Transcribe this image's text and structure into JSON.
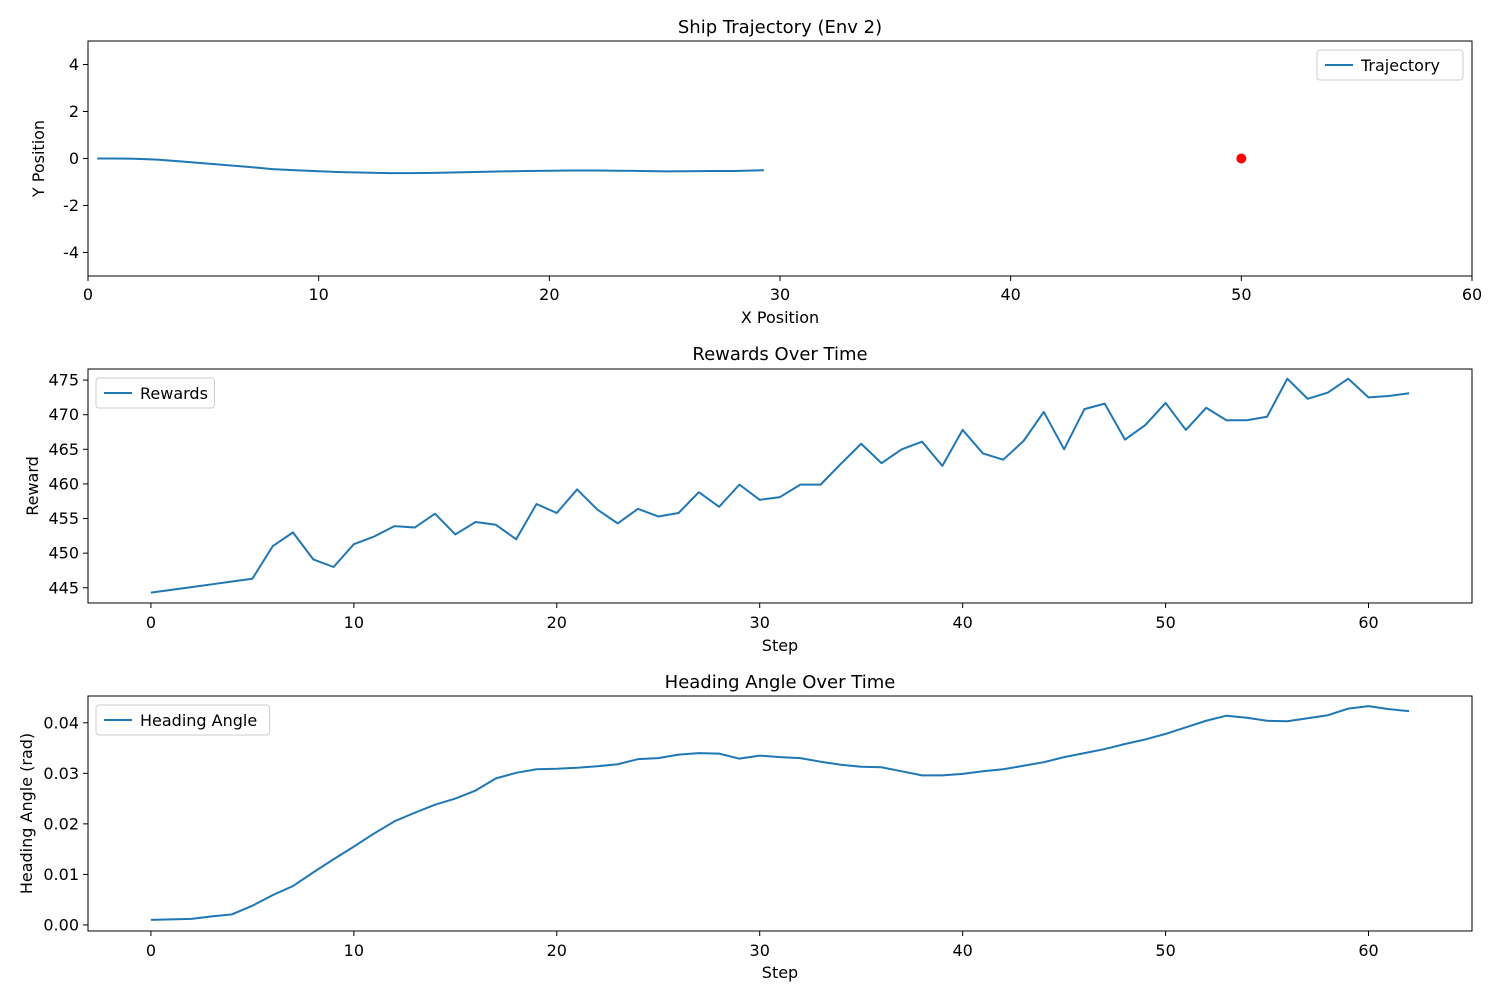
{
  "chart_data": [
    {
      "type": "line",
      "title": "Ship Trajectory (Env 2)",
      "xlabel": "X Position",
      "ylabel": "Y Position",
      "xlim": [
        0,
        60
      ],
      "ylim": [
        -5,
        5
      ],
      "xticks": [
        0,
        10,
        20,
        30,
        40,
        50,
        60
      ],
      "yticks": [
        -4,
        -2,
        0,
        2,
        4
      ],
      "legend_position": "upper-right",
      "grid": false,
      "series": [
        {
          "name": "Trajectory",
          "color": "#1f77b4",
          "x": [
            0.4,
            1,
            2,
            3,
            4,
            5,
            6,
            7,
            8,
            9,
            10,
            11,
            12,
            13,
            14,
            15,
            16,
            17,
            18,
            19,
            20,
            21,
            22,
            23,
            24,
            25,
            26,
            27,
            28,
            29.3
          ],
          "y": [
            0.0,
            0.0,
            -0.01,
            -0.05,
            -0.12,
            -0.2,
            -0.28,
            -0.36,
            -0.45,
            -0.5,
            -0.54,
            -0.58,
            -0.6,
            -0.62,
            -0.62,
            -0.61,
            -0.59,
            -0.57,
            -0.55,
            -0.53,
            -0.52,
            -0.51,
            -0.51,
            -0.52,
            -0.53,
            -0.55,
            -0.54,
            -0.53,
            -0.53,
            -0.5
          ]
        }
      ],
      "markers": [
        {
          "x": 50,
          "y": 0,
          "color": "#ff0000"
        }
      ]
    },
    {
      "type": "line",
      "title": "Rewards Over Time",
      "xlabel": "Step",
      "ylabel": "Reward",
      "xlim": [
        -3.1,
        65.1
      ],
      "ylim": [
        442.8,
        476.6
      ],
      "xticks": [
        0,
        10,
        20,
        30,
        40,
        50,
        60
      ],
      "yticks": [
        445,
        450,
        455,
        460,
        465,
        470,
        475
      ],
      "legend_position": "upper-left",
      "grid": false,
      "series": [
        {
          "name": "Rewards",
          "color": "#1f77b4",
          "x": [
            0,
            1,
            2,
            3,
            4,
            5,
            6,
            7,
            8,
            9,
            10,
            11,
            12,
            13,
            14,
            15,
            16,
            17,
            18,
            19,
            20,
            21,
            22,
            23,
            24,
            25,
            26,
            27,
            28,
            29,
            30,
            31,
            32,
            33,
            34,
            35,
            36,
            37,
            38,
            39,
            40,
            41,
            42,
            43,
            44,
            45,
            46,
            47,
            48,
            49,
            50,
            51,
            52,
            53,
            54,
            55,
            56,
            57,
            58,
            59,
            60,
            61,
            62
          ],
          "y": [
            444.3,
            444.7,
            445.1,
            445.5,
            445.9,
            446.3,
            451.0,
            453.0,
            449.1,
            448.0,
            451.3,
            452.4,
            453.9,
            453.7,
            455.7,
            452.7,
            454.5,
            454.1,
            452.0,
            457.1,
            455.8,
            459.2,
            456.3,
            454.3,
            456.4,
            455.3,
            455.8,
            458.8,
            456.7,
            459.9,
            457.7,
            458.1,
            459.9,
            459.9,
            462.9,
            465.8,
            463.0,
            465.0,
            466.1,
            462.6,
            467.8,
            464.4,
            463.5,
            466.2,
            470.4,
            465.0,
            470.8,
            471.6,
            466.4,
            468.5,
            471.7,
            467.8,
            471.0,
            469.2,
            469.2,
            469.7,
            475.2,
            472.3,
            473.2,
            475.2,
            472.5,
            472.7,
            473.1
          ]
        }
      ]
    },
    {
      "type": "line",
      "title": "Heading Angle Over Time",
      "xlabel": "Step",
      "ylabel": "Heading Angle (rad)",
      "xlim": [
        -3.1,
        65.1
      ],
      "ylim": [
        -0.0012,
        0.0453
      ],
      "xticks": [
        0,
        10,
        20,
        30,
        40,
        50,
        60
      ],
      "yticks": [
        0.0,
        0.01,
        0.02,
        0.03,
        0.04
      ],
      "ytick_labels": [
        "0.00",
        "0.01",
        "0.02",
        "0.03",
        "0.04"
      ],
      "legend_position": "upper-left",
      "grid": false,
      "series": [
        {
          "name": "Heading Angle",
          "color": "#1f77b4",
          "x": [
            0,
            1,
            2,
            3,
            4,
            5,
            6,
            7,
            8,
            9,
            10,
            11,
            12,
            13,
            14,
            15,
            16,
            17,
            18,
            19,
            20,
            21,
            22,
            23,
            24,
            25,
            26,
            27,
            28,
            29,
            30,
            31,
            32,
            33,
            34,
            35,
            36,
            37,
            38,
            39,
            40,
            41,
            42,
            43,
            44,
            45,
            46,
            47,
            48,
            49,
            50,
            51,
            52,
            53,
            54,
            55,
            56,
            57,
            58,
            59,
            60,
            61,
            62
          ],
          "y": [
            0.001,
            0.0011,
            0.0012,
            0.0017,
            0.0021,
            0.0038,
            0.0059,
            0.0077,
            0.0104,
            0.013,
            0.0155,
            0.0181,
            0.0205,
            0.0222,
            0.0238,
            0.025,
            0.0266,
            0.029,
            0.0301,
            0.0308,
            0.0309,
            0.0311,
            0.0314,
            0.0318,
            0.0328,
            0.033,
            0.0337,
            0.034,
            0.0339,
            0.0329,
            0.0335,
            0.0332,
            0.033,
            0.0323,
            0.0317,
            0.0313,
            0.0312,
            0.0304,
            0.0296,
            0.0296,
            0.0299,
            0.0304,
            0.0308,
            0.0315,
            0.0322,
            0.0332,
            0.034,
            0.0348,
            0.0358,
            0.0367,
            0.0378,
            0.0391,
            0.0404,
            0.0414,
            0.041,
            0.0404,
            0.0403,
            0.0409,
            0.0415,
            0.0428,
            0.0433,
            0.0427,
            0.0423
          ]
        }
      ]
    }
  ]
}
